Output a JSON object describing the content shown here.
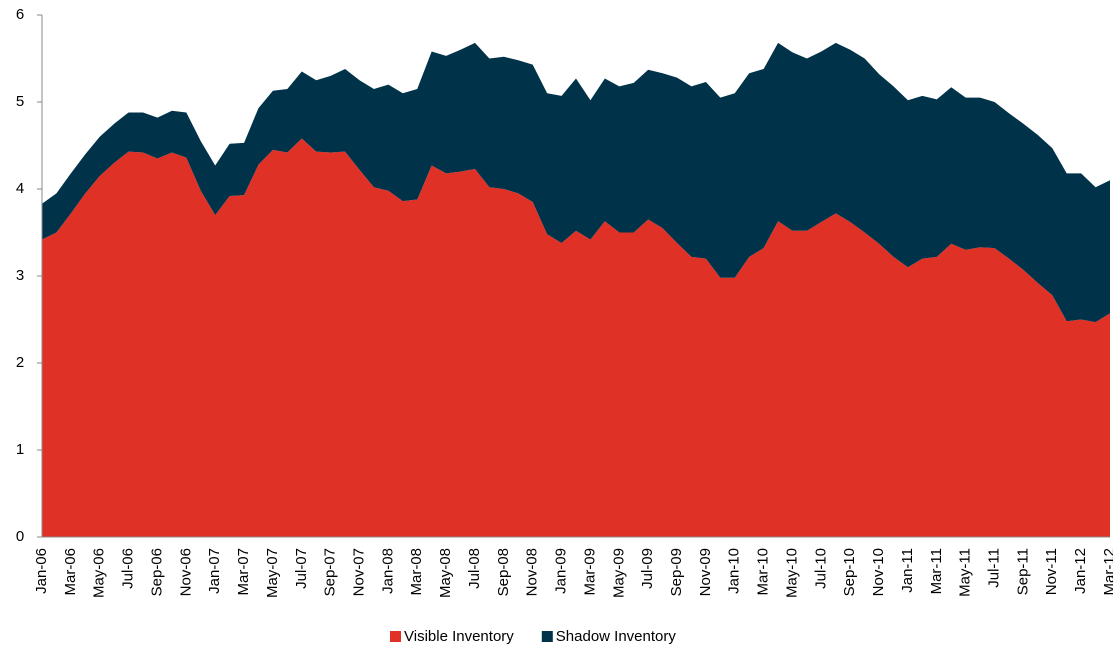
{
  "chart_data": {
    "type": "stacked_area",
    "categories": [
      "Jan-06",
      null,
      "Mar-06",
      null,
      "May-06",
      null,
      "Jul-06",
      null,
      "Sep-06",
      null,
      "Nov-06",
      null,
      "Jan-07",
      null,
      "Mar-07",
      null,
      "May-07",
      null,
      "Jul-07",
      null,
      "Sep-07",
      null,
      "Nov-07",
      null,
      "Jan-08",
      null,
      "Mar-08",
      null,
      "May-08",
      null,
      "Jul-08",
      null,
      "Sep-08",
      null,
      "Nov-08",
      null,
      "Jan-09",
      null,
      "Mar-09",
      null,
      "May-09",
      null,
      "Jul-09",
      null,
      "Sep-09",
      null,
      "Nov-09",
      null,
      "Jan-10",
      null,
      "Mar-10",
      null,
      "May-10",
      null,
      "Jul-10",
      null,
      "Sep-10",
      null,
      "Nov-10",
      null,
      "Jan-11",
      null,
      "Mar-11",
      null,
      "May-11",
      null,
      "Jul-11",
      null,
      "Sep-11",
      null,
      "Nov-11",
      null,
      "Jan-12",
      null,
      "Mar-12"
    ],
    "series": [
      {
        "name": "Visible Inventory",
        "color": "#e03127",
        "values": [
          3.42,
          3.5,
          3.72,
          3.95,
          4.15,
          4.3,
          4.43,
          4.42,
          4.35,
          4.42,
          4.36,
          3.98,
          3.7,
          3.92,
          3.93,
          4.28,
          4.45,
          4.42,
          4.58,
          4.43,
          4.42,
          4.43,
          4.22,
          4.02,
          3.98,
          3.86,
          3.88,
          4.27,
          4.18,
          4.2,
          4.23,
          4.02,
          4.0,
          3.95,
          3.85,
          3.48,
          3.38,
          3.52,
          3.42,
          3.63,
          3.5,
          3.5,
          3.65,
          3.55,
          3.38,
          3.22,
          3.2,
          2.98,
          2.98,
          3.22,
          3.32,
          3.63,
          3.52,
          3.52,
          3.62,
          3.72,
          3.62,
          3.5,
          3.37,
          3.22,
          3.1,
          3.2,
          3.22,
          3.37,
          3.3,
          3.33,
          3.32,
          3.2,
          3.07,
          2.92,
          2.78,
          2.48,
          2.5,
          2.47,
          2.57
        ]
      },
      {
        "name": "Shadow Inventory",
        "color": "#003349",
        "values": [
          0.41,
          0.45,
          0.46,
          0.45,
          0.45,
          0.45,
          0.45,
          0.46,
          0.47,
          0.48,
          0.52,
          0.57,
          0.57,
          0.6,
          0.6,
          0.65,
          0.68,
          0.73,
          0.77,
          0.82,
          0.88,
          0.95,
          1.03,
          1.13,
          1.22,
          1.24,
          1.27,
          1.31,
          1.35,
          1.4,
          1.45,
          1.48,
          1.52,
          1.53,
          1.58,
          1.62,
          1.69,
          1.75,
          1.6,
          1.64,
          1.68,
          1.72,
          1.72,
          1.78,
          1.9,
          1.96,
          2.03,
          2.07,
          2.12,
          2.11,
          2.06,
          2.05,
          2.05,
          1.98,
          1.96,
          1.96,
          1.98,
          2.0,
          1.95,
          1.96,
          1.92,
          1.87,
          1.81,
          1.8,
          1.75,
          1.72,
          1.68,
          1.67,
          1.68,
          1.7,
          1.69,
          1.7,
          1.68,
          1.55,
          1.53
        ]
      }
    ],
    "ylim": [
      0,
      6
    ],
    "yticks": [
      0,
      1,
      2,
      3,
      4,
      5,
      6
    ],
    "legend": "bottom"
  }
}
